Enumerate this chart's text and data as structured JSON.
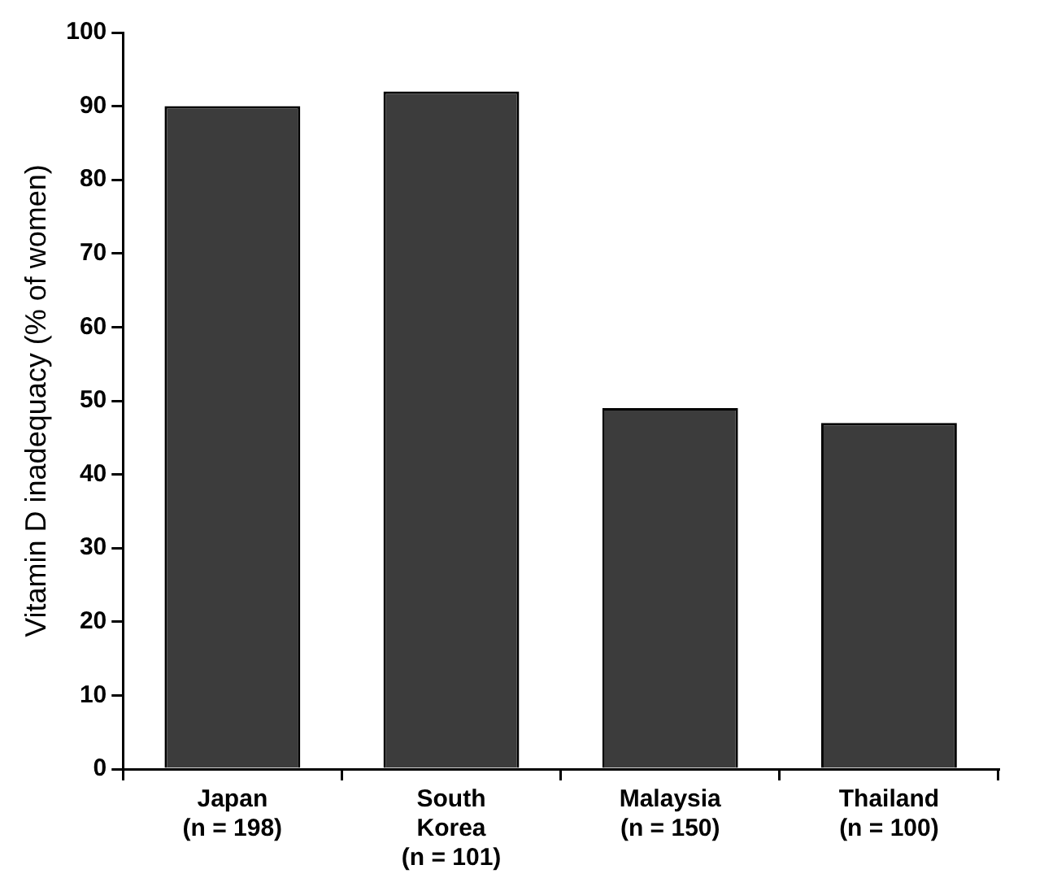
{
  "chart_data": {
    "type": "bar",
    "ylabel": "Vitamin D inadequacy (% of women)",
    "categories": [
      "Japan\n(n = 198)",
      "South\nKorea\n(n = 101)",
      "Malaysia\n(n = 150)",
      "Thailand\n(n = 100)"
    ],
    "values": [
      90,
      92,
      49,
      47
    ],
    "color": "#3c3c3c",
    "ylim": [
      0,
      100
    ],
    "yticks": [
      0,
      10,
      20,
      30,
      40,
      50,
      60,
      70,
      80,
      90,
      100
    ],
    "grid": false,
    "legend": false
  }
}
